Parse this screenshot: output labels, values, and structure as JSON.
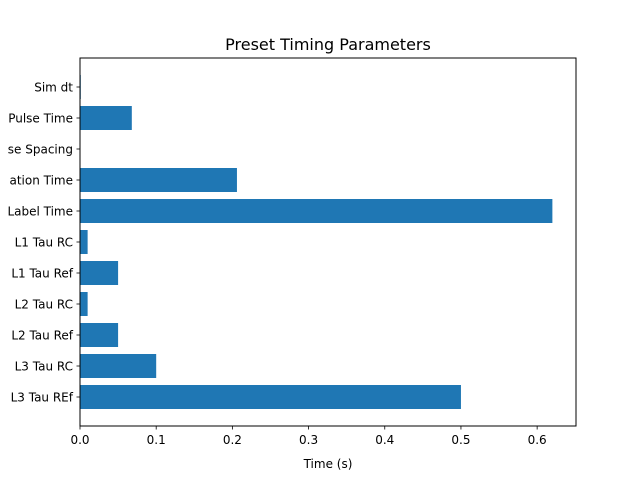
{
  "chart_data": {
    "type": "bar",
    "orientation": "horizontal",
    "title": "Preset Timing Parameters",
    "xlabel": "Time (s)",
    "ylabel": "",
    "xlim": [
      0,
      0.651
    ],
    "xticks": [
      "0.0",
      "0.1",
      "0.2",
      "0.3",
      "0.4",
      "0.5",
      "0.6"
    ],
    "grid": false,
    "bar_color": "#1f77b4",
    "categories": [
      "Sim dt",
      "Pulse Time",
      "se Spacing",
      "ation Time",
      "Label Time",
      "L1 Tau RC",
      "L1 Tau Ref",
      "L2 Tau RC",
      "L2 Tau Ref",
      "L3 Tau RC",
      "L3 Tau REf"
    ],
    "values": [
      0.001,
      0.068,
      0.0,
      0.206,
      0.62,
      0.01,
      0.05,
      0.01,
      0.05,
      0.1,
      0.5
    ]
  }
}
